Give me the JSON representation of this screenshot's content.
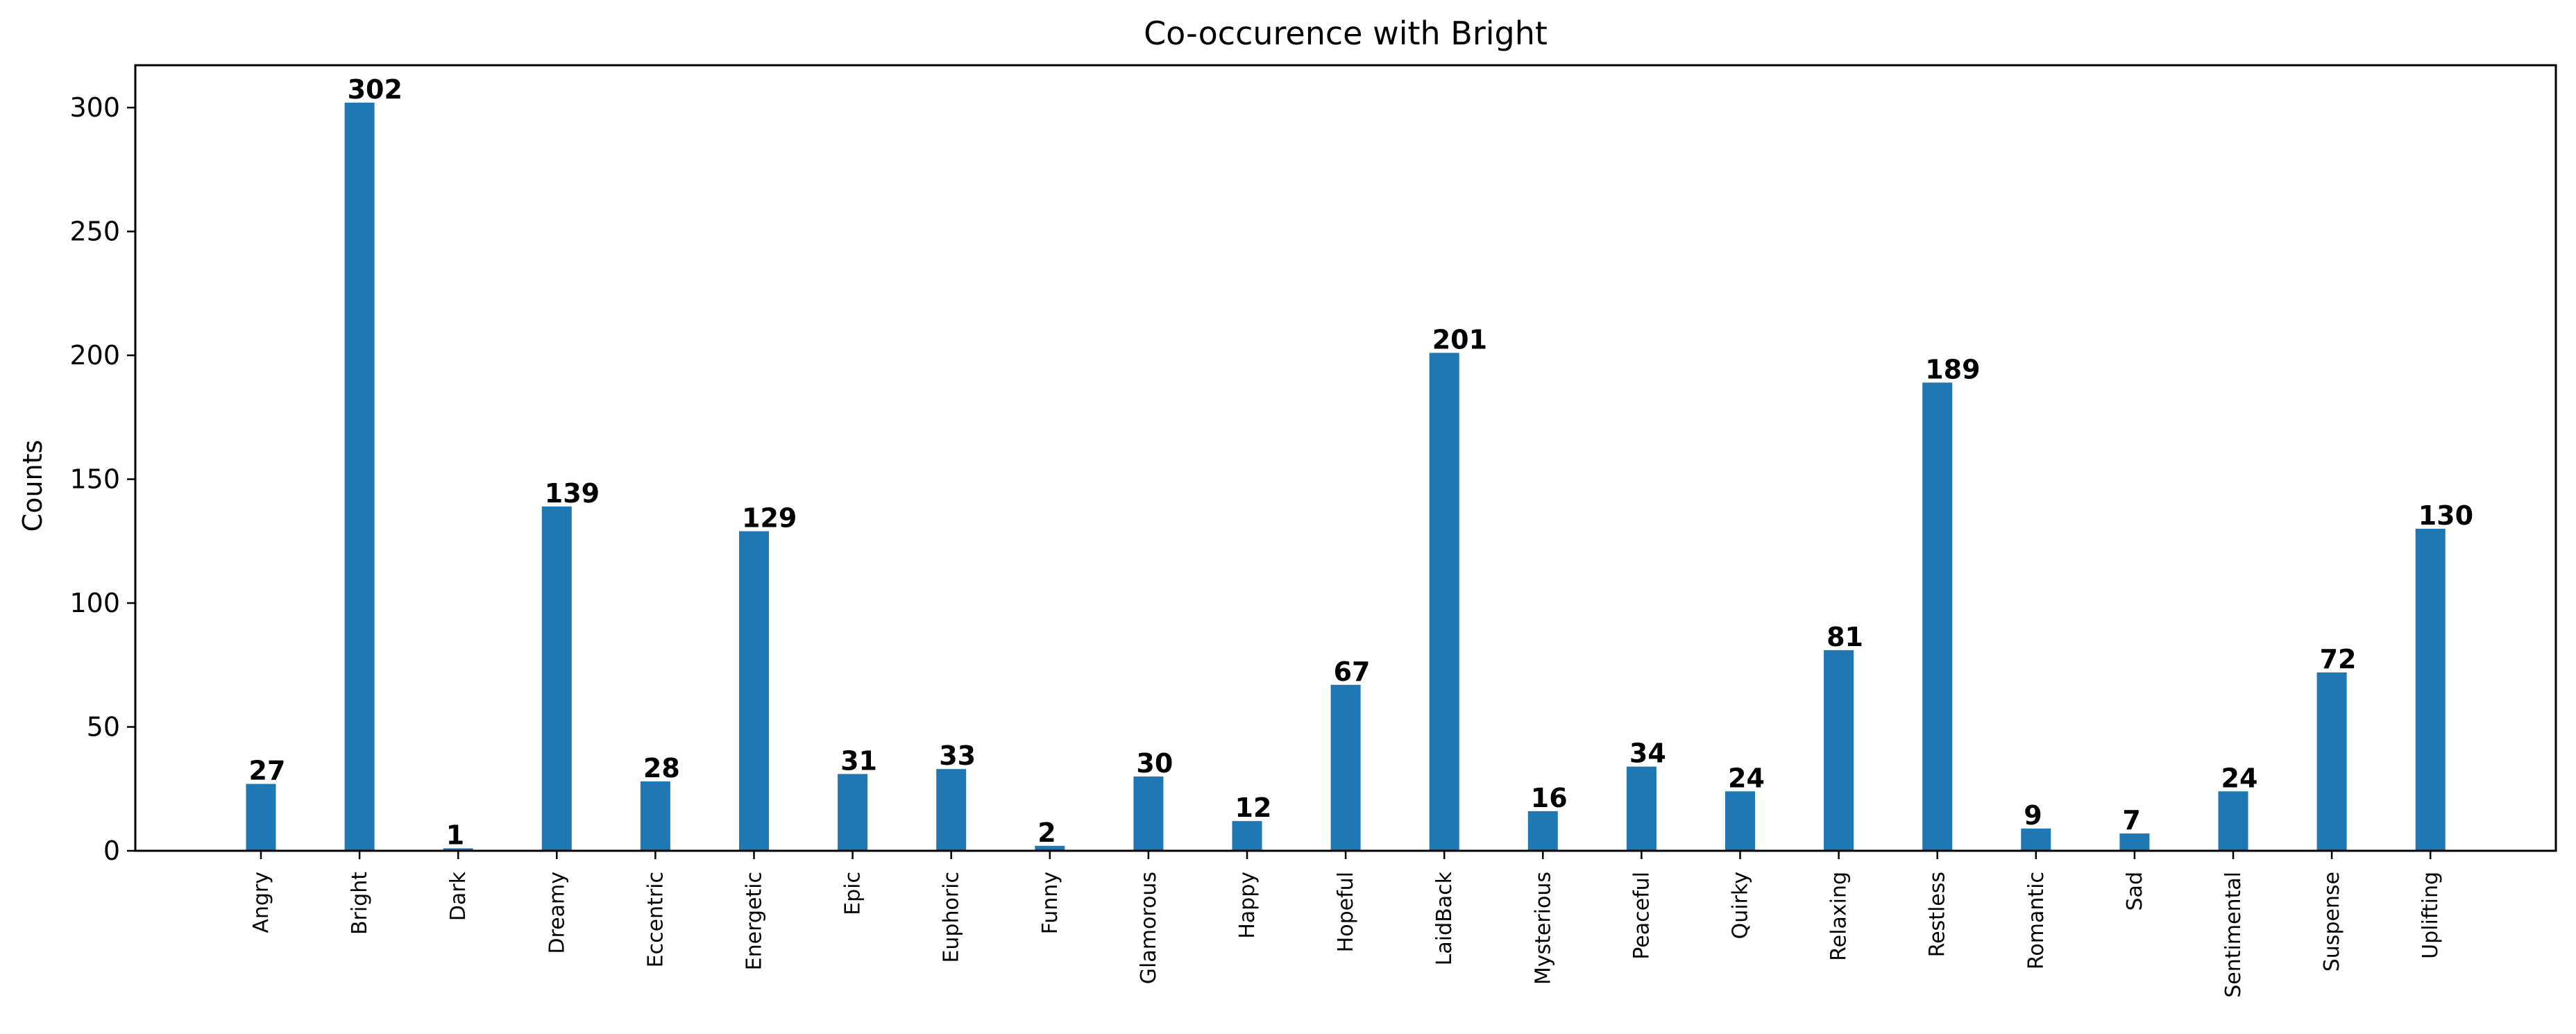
{
  "chart_data": {
    "type": "bar",
    "title": "Co-occurence with Bright",
    "xlabel": "",
    "ylabel": "Counts",
    "categories": [
      "Angry",
      "Bright",
      "Dark",
      "Dreamy",
      "Eccentric",
      "Energetic",
      "Epic",
      "Euphoric",
      "Funny",
      "Glamorous",
      "Happy",
      "Hopeful",
      "LaidBack",
      "Mysterious",
      "Peaceful",
      "Quirky",
      "Relaxing",
      "Restless",
      "Romantic",
      "Sad",
      "Sentimental",
      "Suspense",
      "Uplifting"
    ],
    "values": [
      27,
      302,
      1,
      139,
      28,
      129,
      31,
      33,
      2,
      30,
      12,
      67,
      201,
      16,
      34,
      24,
      81,
      189,
      9,
      7,
      24,
      72,
      130
    ],
    "data_labels": [
      "27",
      "302",
      "1",
      "139",
      "28",
      "129",
      "31",
      "33",
      "2",
      "30",
      "12",
      "67",
      "201",
      "16",
      "34",
      "24",
      "81",
      "189",
      "9",
      "7",
      "24",
      "72",
      "130"
    ],
    "ylim": [
      0,
      317.1
    ],
    "yticks": [
      0,
      50,
      100,
      150,
      200,
      250,
      300
    ],
    "ytick_labels": [
      "0",
      "50",
      "100",
      "150",
      "200",
      "250",
      "300"
    ],
    "bar_color": "#1f77b4",
    "grid": false,
    "legend": "none"
  }
}
